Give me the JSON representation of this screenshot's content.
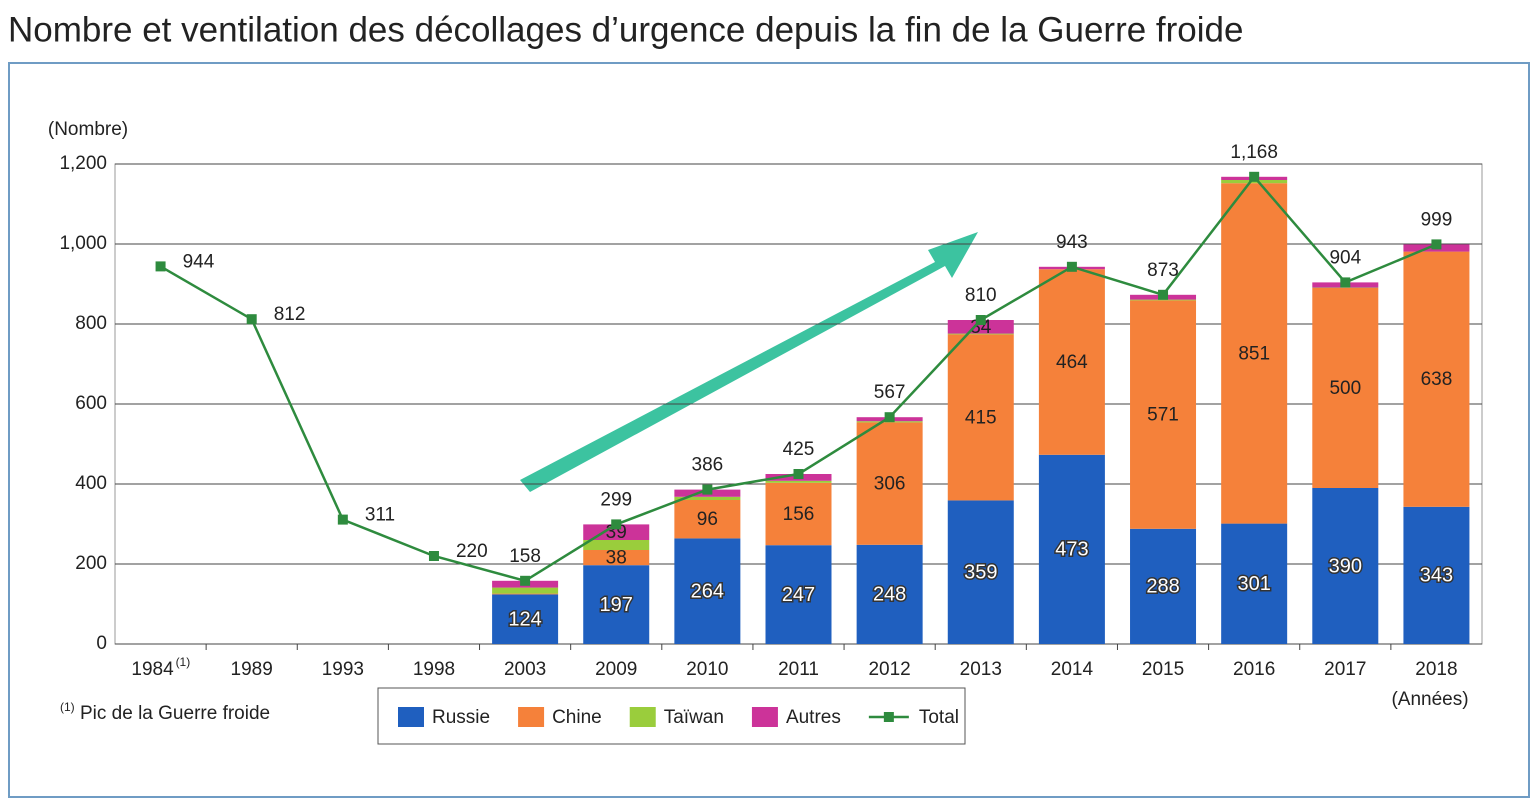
{
  "chart_data": {
    "type": "bar",
    "stacked": true,
    "title": "Nombre et ventilation des décollages d’urgence depuis la fin de la Guerre froide",
    "y_label": "(Nombre)",
    "x_label": "(Années)",
    "footnote": {
      "marker": "(1)",
      "text": "Pic de la Guerre froide",
      "category": "1984"
    },
    "categories": [
      "1984",
      "1989",
      "1993",
      "1998",
      "2003",
      "2009",
      "2010",
      "2011",
      "2012",
      "2013",
      "2014",
      "2015",
      "2016",
      "2017",
      "2018"
    ],
    "series": [
      {
        "name": "Russie",
        "color": "#1f5fbf",
        "values": [
          null,
          null,
          null,
          null,
          124,
          197,
          264,
          247,
          248,
          359,
          473,
          288,
          301,
          390,
          343
        ]
      },
      {
        "name": "Chine",
        "color": "#f5813a",
        "values": [
          null,
          null,
          null,
          null,
          2,
          38,
          96,
          156,
          306,
          415,
          464,
          571,
          851,
          500,
          638
        ]
      },
      {
        "name": "Taïwan",
        "color": "#9acd3c",
        "values": [
          null,
          null,
          null,
          null,
          15,
          25,
          8,
          5,
          3,
          2,
          0,
          2,
          8,
          1,
          0
        ]
      },
      {
        "name": "Autres",
        "color": "#cc3399",
        "values": [
          null,
          null,
          null,
          null,
          17,
          39,
          18,
          17,
          10,
          34,
          6,
          12,
          8,
          13,
          18
        ]
      }
    ],
    "line": {
      "name": "Total",
      "color": "#2e8b3e",
      "values": [
        944,
        812,
        311,
        220,
        158,
        299,
        386,
        425,
        567,
        810,
        943,
        873,
        1168,
        904,
        999
      ],
      "value_labels": [
        "944",
        "812",
        "311",
        "220",
        "158",
        "299",
        "386",
        "425",
        "567",
        "810",
        "943",
        "873",
        "1,168",
        "904",
        "999"
      ]
    },
    "ylim": [
      0,
      1200
    ],
    "yticks": [
      0,
      200,
      400,
      600,
      800,
      {
        "value": 1000,
        "label": "1,000"
      },
      {
        "value": 1200,
        "label": "1,200"
      }
    ],
    "grid": true
  }
}
